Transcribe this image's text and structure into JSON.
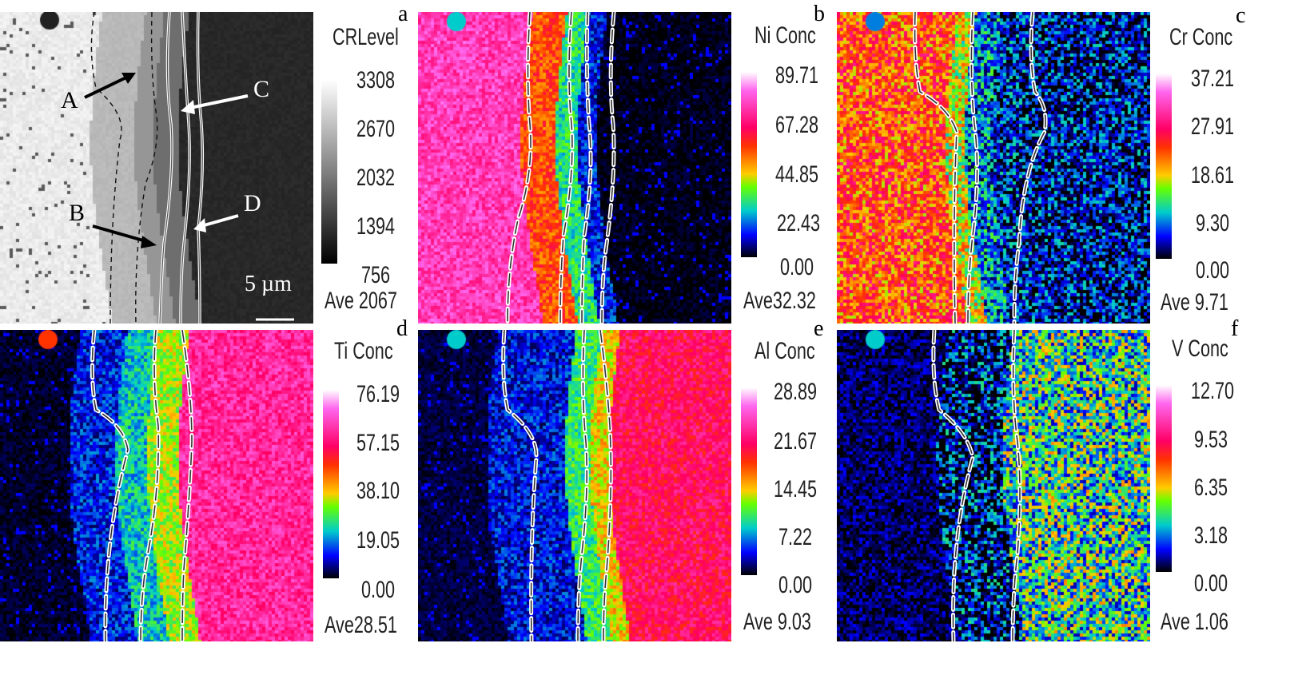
{
  "panels": [
    {
      "letter": "a",
      "title": "CRLevel",
      "ticks": [
        "3308",
        "2670",
        "2032",
        "1394",
        "756"
      ],
      "ave": "Ave  2067",
      "mode": "gray",
      "annotations": {
        "A": "A",
        "B": "B",
        "C": "C",
        "D": "D",
        "scale": "5 µm"
      }
    },
    {
      "letter": "b",
      "title": "Ni Conc",
      "ticks": [
        "89.71",
        "67.28",
        "44.85",
        "22.43",
        "0.00"
      ],
      "ave": "Ave32.32",
      "mode": "ni"
    },
    {
      "letter": "c",
      "title": "Cr Conc",
      "ticks": [
        "37.21",
        "27.91",
        "18.61",
        "9.30",
        "0.00"
      ],
      "ave": "Ave  9.71",
      "mode": "cr"
    },
    {
      "letter": "d",
      "title": "Ti Conc",
      "ticks": [
        "76.19",
        "57.15",
        "38.10",
        "19.05",
        "0.00"
      ],
      "ave": "Ave28.51",
      "mode": "ti"
    },
    {
      "letter": "e",
      "title": "Al Conc",
      "ticks": [
        "28.89",
        "21.67",
        "14.45",
        "7.22",
        "0.00"
      ],
      "ave": "Ave  9.03",
      "mode": "al"
    },
    {
      "letter": "f",
      "title": "V Conc",
      "ticks": [
        "12.70",
        "9.53",
        "6.35",
        "3.18",
        "0.00"
      ],
      "ave": "Ave  1.06",
      "mode": "v"
    }
  ],
  "colors": {
    "background": "#ffffff",
    "dashed_line": "#ffffff",
    "arrow_dark": "#000000",
    "arrow_light": "#ffffff"
  }
}
